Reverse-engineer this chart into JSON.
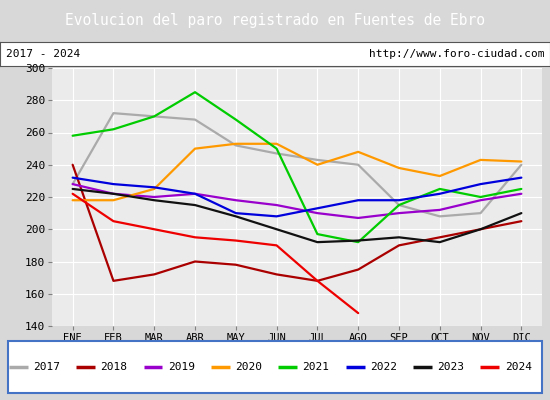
{
  "title": "Evolucion del paro registrado en Fuentes de Ebro",
  "subtitle_left": "2017 - 2024",
  "subtitle_right": "http://www.foro-ciudad.com",
  "title_bg": "#4472c4",
  "title_color": "#ffffff",
  "months": [
    "ENE",
    "FEB",
    "MAR",
    "ABR",
    "MAY",
    "JUN",
    "JUL",
    "AGO",
    "SEP",
    "OCT",
    "NOV",
    "DIC"
  ],
  "ylim": [
    140,
    300
  ],
  "yticks": [
    140,
    160,
    180,
    200,
    220,
    240,
    260,
    280,
    300
  ],
  "series": {
    "2017": {
      "color": "#aaaaaa",
      "values": [
        228,
        272,
        270,
        268,
        252,
        247,
        243,
        240,
        215,
        208,
        210,
        240
      ]
    },
    "2018": {
      "color": "#aa0000",
      "values": [
        240,
        168,
        172,
        180,
        178,
        172,
        168,
        175,
        190,
        195,
        200,
        205
      ]
    },
    "2019": {
      "color": "#9900cc",
      "values": [
        228,
        222,
        220,
        222,
        218,
        215,
        210,
        207,
        210,
        212,
        218,
        222
      ]
    },
    "2020": {
      "color": "#ff9900",
      "values": [
        218,
        218,
        225,
        250,
        253,
        253,
        240,
        248,
        238,
        233,
        243,
        242
      ]
    },
    "2021": {
      "color": "#00cc00",
      "values": [
        258,
        262,
        270,
        285,
        268,
        250,
        197,
        192,
        215,
        225,
        220,
        225
      ]
    },
    "2022": {
      "color": "#0000dd",
      "values": [
        232,
        228,
        226,
        222,
        210,
        208,
        213,
        218,
        218,
        222,
        228,
        232
      ]
    },
    "2023": {
      "color": "#111111",
      "values": [
        225,
        222,
        218,
        215,
        208,
        200,
        192,
        193,
        195,
        192,
        200,
        210
      ]
    },
    "2024": {
      "color": "#ee0000",
      "values": [
        222,
        205,
        200,
        195,
        193,
        190,
        168,
        148,
        null,
        null,
        null,
        null
      ]
    }
  }
}
